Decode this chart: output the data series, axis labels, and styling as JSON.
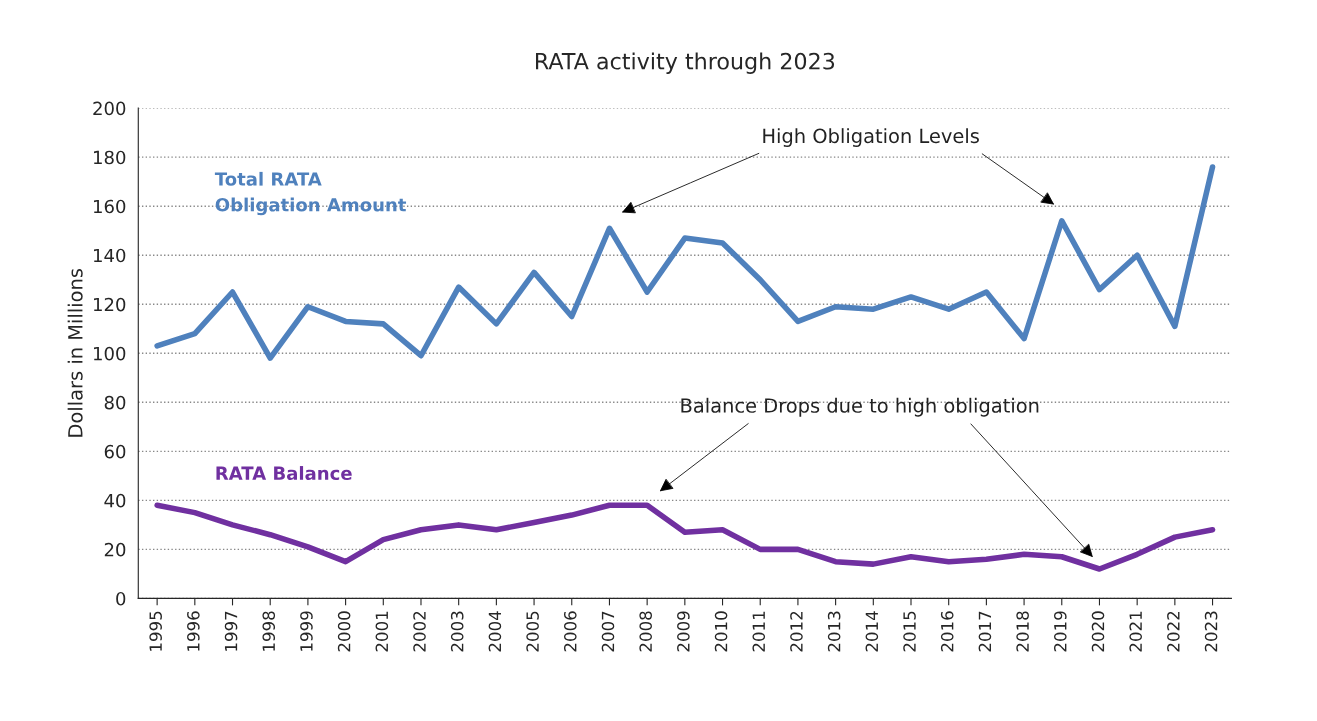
{
  "chart_data": {
    "type": "line",
    "title": "RATA activity through 2023",
    "ylabel": "Dollars in Millions",
    "categories": [
      "1995",
      "1996",
      "1997",
      "1998",
      "1999",
      "2000",
      "2001",
      "2002",
      "2003",
      "2004",
      "2005",
      "2006",
      "2007",
      "2008",
      "2009",
      "2010",
      "2011",
      "2012",
      "2013",
      "2014",
      "2015",
      "2016",
      "2017",
      "2018",
      "2019",
      "2020",
      "2021",
      "2022",
      "2023"
    ],
    "series": [
      {
        "name": "Total RATA\nObligation Amount",
        "color": "#4f81bd",
        "values": [
          103,
          108,
          125,
          98,
          119,
          113,
          112,
          99,
          127,
          112,
          133,
          115,
          151,
          125,
          147,
          145,
          130,
          113,
          119,
          118,
          123,
          118,
          125,
          106,
          154,
          126,
          140,
          111,
          176
        ]
      },
      {
        "name": "RATA Balance",
        "color": "#7030a0",
        "values": [
          38,
          35,
          30,
          26,
          21,
          15,
          24,
          28,
          30,
          28,
          31,
          34,
          38,
          38,
          27,
          28,
          20,
          20,
          15,
          14,
          17,
          15,
          16,
          18,
          17,
          12,
          18,
          25,
          28
        ]
      }
    ],
    "annotations": [
      "High Obligation Levels",
      "Balance Drops due to high obligation"
    ],
    "ylim": [
      0,
      200
    ],
    "yticks": [
      0,
      20,
      40,
      60,
      80,
      100,
      120,
      140,
      160,
      180,
      200
    ],
    "grid": "y",
    "legend": false,
    "line_style": "solid",
    "marker": "none"
  }
}
